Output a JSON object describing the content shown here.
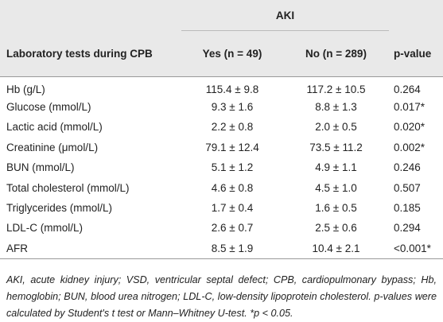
{
  "table": {
    "group_header": "AKI",
    "columns": [
      "Laboratory tests during CPB",
      "Yes (n = 49)",
      "No (n = 289)",
      "p-value"
    ],
    "rows": [
      [
        "Hb (g/L)",
        "115.4 ± 9.8",
        "117.2 ± 10.5",
        "0.264"
      ],
      [
        "Glucose (mmol/L)",
        "9.3 ± 1.6",
        "8.8 ± 1.3",
        "0.017*"
      ],
      [
        "Lactic acid (mmol/L)",
        "2.2 ± 0.8",
        "2.0 ± 0.5",
        "0.020*"
      ],
      [
        "Creatinine (μmol/L)",
        "79.1 ± 12.4",
        "73.5 ± 11.2",
        "0.002*"
      ],
      [
        "BUN (mmol/L)",
        "5.1 ± 1.2",
        "4.9 ± 1.1",
        "0.246"
      ],
      [
        "Total cholesterol (mmol/L)",
        "4.6 ± 0.8",
        "4.5 ± 1.0",
        "0.507"
      ],
      [
        "Triglycerides (mmol/L)",
        "1.7 ± 0.4",
        "1.6 ± 0.5",
        "0.185"
      ],
      [
        "LDL-C (mmol/L)",
        "2.6 ± 0.7",
        "2.5 ± 0.6",
        "0.294"
      ],
      [
        "AFR",
        "8.5 ± 1.9",
        "10.4 ± 2.1",
        "<0.001*"
      ]
    ]
  },
  "footnote": "AKI, acute kidney injury; VSD, ventricular septal defect; CPB, cardiopulmonary bypass; Hb, hemoglobin; BUN, blood urea nitrogen; LDL-C, low-density lipoprotein cholesterol. p-values were calculated by Student's t test or Mann–Whitney U-test. *p < 0.05."
}
